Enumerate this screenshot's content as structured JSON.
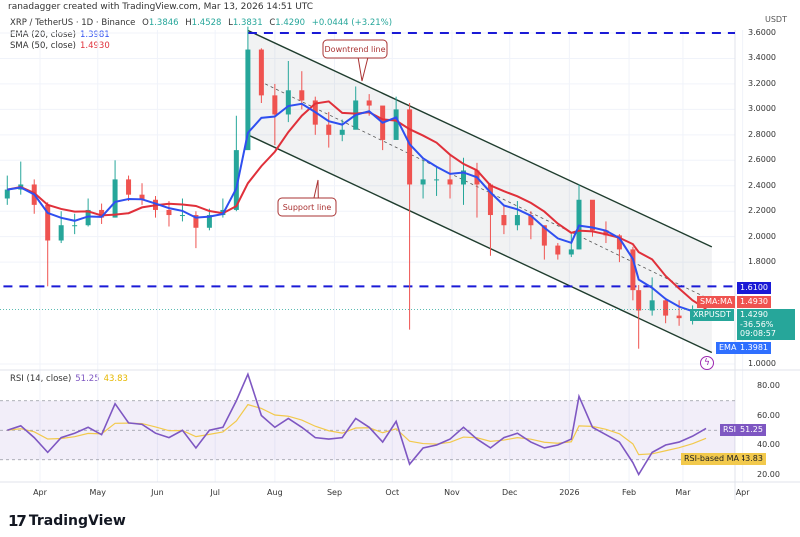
{
  "header": {
    "credit": "ranadagger created with TradingView.com, Mar 13, 2026 14:51 UTC",
    "symbol": "XRP / TetherUS · 1D · Binance",
    "o_label": "O",
    "open": "1.3846",
    "h_label": "H",
    "high": "1.4528",
    "l_label": "L",
    "low": "1.3831",
    "c_label": "C",
    "close": "1.4290",
    "change": "+0.0444 (+3.21%)",
    "ema_label": "EMA (20, close)",
    "ema_value": "1.3981",
    "sma_label": "SMA (50, close)",
    "sma_value": "1.4930",
    "rsi_label": "RSI (14, close)",
    "rsi_value": "51.25",
    "rsi_ma_value": "43.83"
  },
  "price_axis": {
    "unit": "USDT",
    "ticks": [
      "3.6000",
      "3.4000",
      "3.2000",
      "3.0000",
      "2.8000",
      "2.6000",
      "2.4000",
      "2.2000",
      "2.0000",
      "1.8000",
      "1.0000"
    ]
  },
  "rsi_axis": {
    "ticks": [
      "80.00",
      "60.00",
      "40.00",
      "20.00"
    ]
  },
  "badges": {
    "level": "1.6100",
    "sma_name": "SMA:MA",
    "sma": "1.4930",
    "symbol_name": "XRPUSDT",
    "price": "1.4290",
    "pct": "-36.56%",
    "countdown": "09:08:57",
    "ema_name": "EMA",
    "ema": "1.3981",
    "rsi_name": "RSI",
    "rsi": "51.25",
    "rsi_ma_name": "RSI-based MA",
    "rsi_ma": "43.83"
  },
  "annotations": {
    "downtrend": "Downtrend line",
    "support": "Support line"
  },
  "logo": "TradingView",
  "colors": {
    "up": "#26a69a",
    "down": "#ef5350",
    "ema": "#2f4ff0",
    "sma": "#e0303a",
    "rsi": "#7e57c2",
    "rsi_ma": "#f2c94c",
    "level": "#1a1ad6"
  },
  "chart_data": {
    "type": "candlestick",
    "symbol": "XRPUSDT",
    "interval": "1D",
    "ylim": [
      0.95,
      3.7
    ],
    "rsi_ylim": [
      12,
      95
    ],
    "x_ticks": [
      {
        "label": "Apr",
        "date": "2025-04-01"
      },
      {
        "label": "May",
        "date": "2025-05-01"
      },
      {
        "label": "Jun",
        "date": "2025-06-01"
      },
      {
        "label": "Jul",
        "date": "2025-07-01"
      },
      {
        "label": "Aug",
        "date": "2025-08-01"
      },
      {
        "label": "Sep",
        "date": "2025-09-01"
      },
      {
        "label": "Oct",
        "date": "2025-10-01"
      },
      {
        "label": "Nov",
        "date": "2025-11-01"
      },
      {
        "label": "Dec",
        "date": "2025-12-01"
      },
      {
        "label": "2026",
        "date": "2026-01-01"
      },
      {
        "label": "Feb",
        "date": "2026-02-01"
      },
      {
        "label": "Mar",
        "date": "2026-03-01"
      },
      {
        "label": "Apr",
        "date": "2026-04-01"
      }
    ],
    "columns": [
      "date",
      "high",
      "low",
      "close",
      "rsi"
    ],
    "rows": [
      [
        "2025-03-15",
        2.48,
        2.25,
        2.37,
        50
      ],
      [
        "2025-03-22",
        2.59,
        2.33,
        2.41,
        53
      ],
      [
        "2025-03-29",
        2.45,
        2.18,
        2.25,
        45
      ],
      [
        "2025-04-05",
        2.27,
        1.61,
        1.97,
        35
      ],
      [
        "2025-04-12",
        2.2,
        1.95,
        2.09,
        45
      ],
      [
        "2025-04-19",
        2.18,
        2.02,
        2.09,
        48
      ],
      [
        "2025-04-26",
        2.3,
        2.08,
        2.21,
        52
      ],
      [
        "2025-05-03",
        2.26,
        2.1,
        2.15,
        47
      ],
      [
        "2025-05-10",
        2.6,
        2.15,
        2.45,
        68
      ],
      [
        "2025-05-17",
        2.48,
        2.28,
        2.33,
        55
      ],
      [
        "2025-05-24",
        2.42,
        2.25,
        2.29,
        54
      ],
      [
        "2025-05-31",
        2.32,
        2.15,
        2.21,
        48
      ],
      [
        "2025-06-07",
        2.28,
        2.08,
        2.17,
        45
      ],
      [
        "2025-06-14",
        2.3,
        2.12,
        2.17,
        50
      ],
      [
        "2025-06-21",
        2.2,
        1.91,
        2.07,
        38
      ],
      [
        "2025-06-28",
        2.22,
        2.05,
        2.17,
        50
      ],
      [
        "2025-07-05",
        2.3,
        2.15,
        2.21,
        52
      ],
      [
        "2025-07-12",
        2.95,
        2.2,
        2.68,
        70
      ],
      [
        "2025-07-18",
        3.65,
        2.9,
        3.47,
        88
      ],
      [
        "2025-07-25",
        3.48,
        3.05,
        3.11,
        60
      ],
      [
        "2025-08-01",
        3.2,
        2.72,
        2.96,
        52
      ],
      [
        "2025-08-08",
        3.38,
        2.9,
        3.15,
        58
      ],
      [
        "2025-08-15",
        3.3,
        3.0,
        3.07,
        52
      ],
      [
        "2025-08-22",
        3.1,
        2.8,
        2.88,
        45
      ],
      [
        "2025-08-29",
        2.98,
        2.7,
        2.8,
        44
      ],
      [
        "2025-09-05",
        2.92,
        2.75,
        2.84,
        45
      ],
      [
        "2025-09-12",
        3.18,
        2.85,
        3.07,
        58
      ],
      [
        "2025-09-19",
        3.12,
        2.95,
        3.03,
        52
      ],
      [
        "2025-09-26",
        3.02,
        2.68,
        2.76,
        42
      ],
      [
        "2025-10-03",
        3.1,
        2.8,
        3.0,
        56
      ],
      [
        "2025-10-10",
        3.05,
        1.27,
        2.41,
        27
      ],
      [
        "2025-10-17",
        2.6,
        2.3,
        2.45,
        38
      ],
      [
        "2025-10-24",
        2.55,
        2.32,
        2.45,
        40
      ],
      [
        "2025-10-31",
        2.65,
        2.3,
        2.41,
        44
      ],
      [
        "2025-11-07",
        2.62,
        2.25,
        2.52,
        52
      ],
      [
        "2025-11-14",
        2.58,
        2.15,
        2.41,
        44
      ],
      [
        "2025-11-21",
        2.42,
        1.85,
        2.17,
        38
      ],
      [
        "2025-11-28",
        2.25,
        2.02,
        2.09,
        45
      ],
      [
        "2025-12-05",
        2.28,
        2.05,
        2.17,
        48
      ],
      [
        "2025-12-12",
        2.2,
        1.98,
        2.09,
        42
      ],
      [
        "2025-12-19",
        2.05,
        1.82,
        1.93,
        38
      ],
      [
        "2025-12-26",
        1.95,
        1.82,
        1.86,
        40
      ],
      [
        "2026-01-02",
        2.02,
        1.84,
        1.9,
        44
      ],
      [
        "2026-01-06",
        2.41,
        1.9,
        2.29,
        73
      ],
      [
        "2026-01-13",
        2.25,
        2.0,
        2.05,
        52
      ],
      [
        "2026-01-20",
        2.12,
        1.95,
        2.01,
        47
      ],
      [
        "2026-01-27",
        2.02,
        1.8,
        1.9,
        42
      ],
      [
        "2026-02-03",
        1.92,
        1.5,
        1.58,
        28
      ],
      [
        "2026-02-06",
        1.62,
        1.12,
        1.42,
        20
      ],
      [
        "2026-02-13",
        1.68,
        1.38,
        1.5,
        35
      ],
      [
        "2026-02-20",
        1.52,
        1.32,
        1.38,
        40
      ],
      [
        "2026-02-27",
        1.5,
        1.3,
        1.36,
        42
      ],
      [
        "2026-03-06",
        1.46,
        1.31,
        1.36,
        46
      ],
      [
        "2026-03-13",
        1.4528,
        1.3831,
        1.429,
        51.25
      ]
    ],
    "first_open": 2.3,
    "levels": [
      {
        "price": 3.6,
        "from": "2025-07-18"
      },
      {
        "price": 1.61,
        "from": "2025-03-13"
      }
    ],
    "trendlines": [
      {
        "name": "downtrend",
        "from": [
          "2025-07-18",
          3.62
        ],
        "to": [
          "2026-03-16",
          1.92
        ]
      },
      {
        "name": "support",
        "from": [
          "2025-07-18",
          2.8
        ],
        "to": [
          "2026-03-16",
          1.09
        ]
      },
      {
        "name": "midline",
        "from": [
          "2025-07-27",
          3.2
        ],
        "to": [
          "2026-03-16",
          1.5
        ]
      }
    ],
    "rsi_bands": [
      70,
      50,
      30
    ]
  }
}
